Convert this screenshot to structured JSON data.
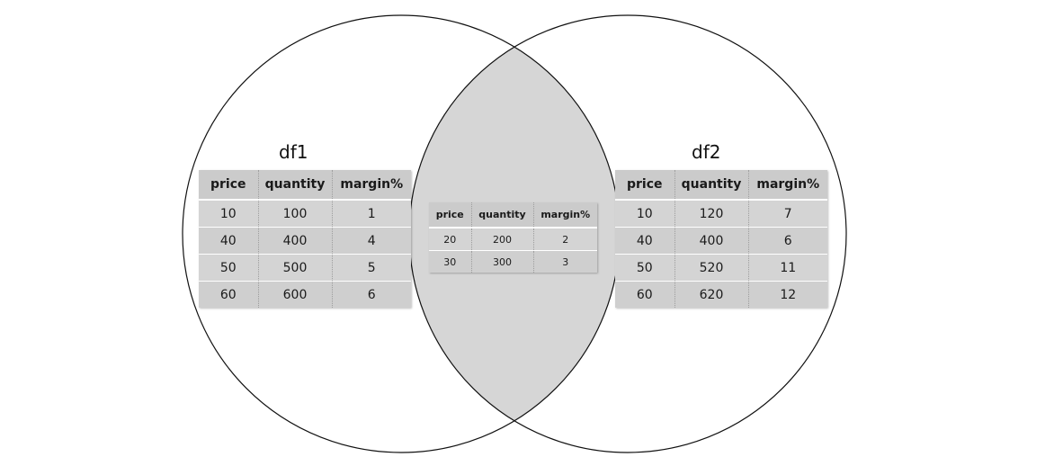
{
  "df1": {
    "name": "df1",
    "columns": [
      "price",
      "quantity",
      "margin%"
    ],
    "rows": [
      [
        "10",
        "100",
        "1"
      ],
      [
        "40",
        "400",
        "4"
      ],
      [
        "50",
        "500",
        "5"
      ],
      [
        "60",
        "600",
        "6"
      ]
    ]
  },
  "intersection": {
    "columns": [
      "price",
      "quantity",
      "margin%"
    ],
    "rows": [
      [
        "20",
        "200",
        "2"
      ],
      [
        "30",
        "300",
        "3"
      ]
    ]
  },
  "df2": {
    "name": "df2",
    "columns": [
      "price",
      "quantity",
      "margin%"
    ],
    "rows": [
      [
        "10",
        "120",
        "7"
      ],
      [
        "40",
        "400",
        "6"
      ],
      [
        "50",
        "520",
        "11"
      ],
      [
        "60",
        "620",
        "12"
      ]
    ]
  },
  "colors": {
    "overlap_fill": "#d6d6d6",
    "circle_stroke": "#111111",
    "table_bg": "#d4d4d4"
  }
}
